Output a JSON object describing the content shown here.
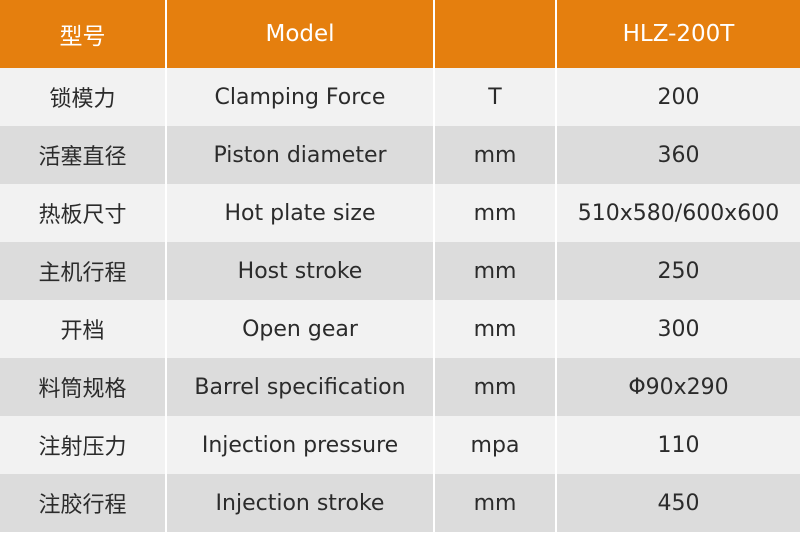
{
  "header": {
    "col_cn": "型号",
    "col_en": "Model",
    "col_unit": "",
    "col_value": "HLZ-200T"
  },
  "rows": [
    {
      "cn": "锁模力",
      "en": "Clamping Force",
      "unit": "T",
      "value": "200"
    },
    {
      "cn": "活塞直径",
      "en": "Piston diameter",
      "unit": "mm",
      "value": "360"
    },
    {
      "cn": "热板尺寸",
      "en": "Hot plate size",
      "unit": "mm",
      "value": "510x580/600x600"
    },
    {
      "cn": "主机行程",
      "en": "Host stroke",
      "unit": "mm",
      "value": "250"
    },
    {
      "cn": "开档",
      "en": "Open gear",
      "unit": "mm",
      "value": "300"
    },
    {
      "cn": "料筒规格",
      "en": "Barrel specification",
      "unit": "mm",
      "value": "Φ90x290"
    },
    {
      "cn": "注射压力",
      "en": "Injection pressure",
      "unit": "mpa",
      "value": "110"
    },
    {
      "cn": "注胶行程",
      "en": "Injection stroke",
      "unit": "mm",
      "value": "450"
    }
  ],
  "colors": {
    "header_bg": "#e57f0e",
    "row_light": "#f2f2f2",
    "row_dark": "#dcdcdc"
  }
}
